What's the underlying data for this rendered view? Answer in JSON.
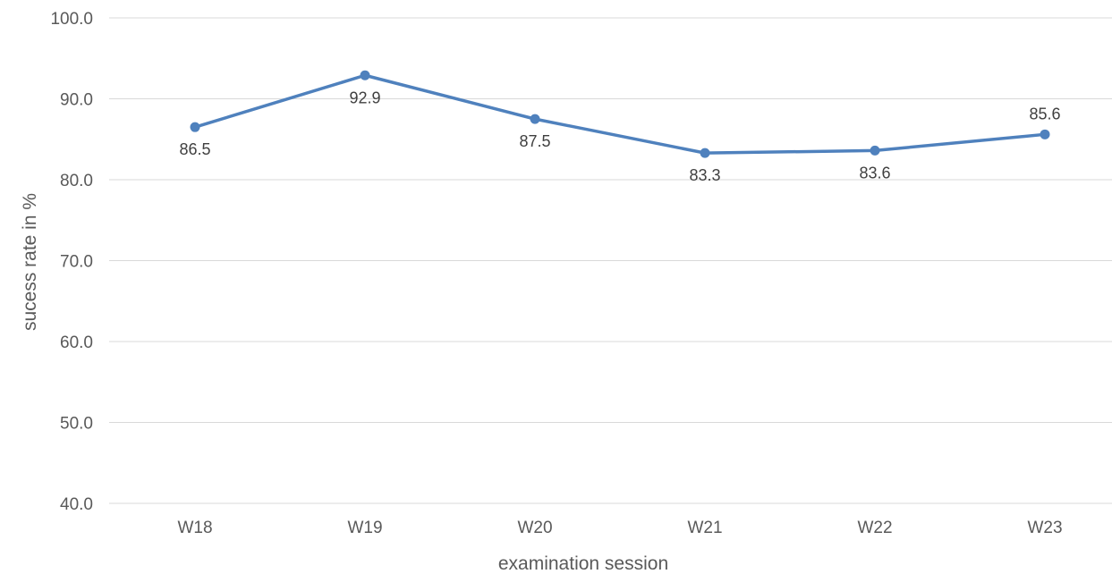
{
  "chart_data": {
    "type": "line",
    "title": "",
    "xlabel": "examination session",
    "ylabel": "sucess rate in %",
    "categories": [
      "W18",
      "W19",
      "W20",
      "W21",
      "W22",
      "W23"
    ],
    "series": [
      {
        "values": [
          86.5,
          92.9,
          87.5,
          83.3,
          83.6,
          85.6
        ],
        "labels": [
          "86.5",
          "92.9",
          "87.5",
          "83.3",
          "83.6",
          "85.6"
        ],
        "label_position": [
          "below",
          "below",
          "below",
          "below",
          "below",
          "above"
        ],
        "color": "#4F81BD"
      }
    ],
    "ylim": [
      40.0,
      100.0
    ],
    "yticks": [
      "40.0",
      "50.0",
      "60.0",
      "70.0",
      "80.0",
      "90.0",
      "100.0"
    ],
    "grid": true,
    "gridline_color": "#D9D9D9",
    "legend": "none"
  }
}
